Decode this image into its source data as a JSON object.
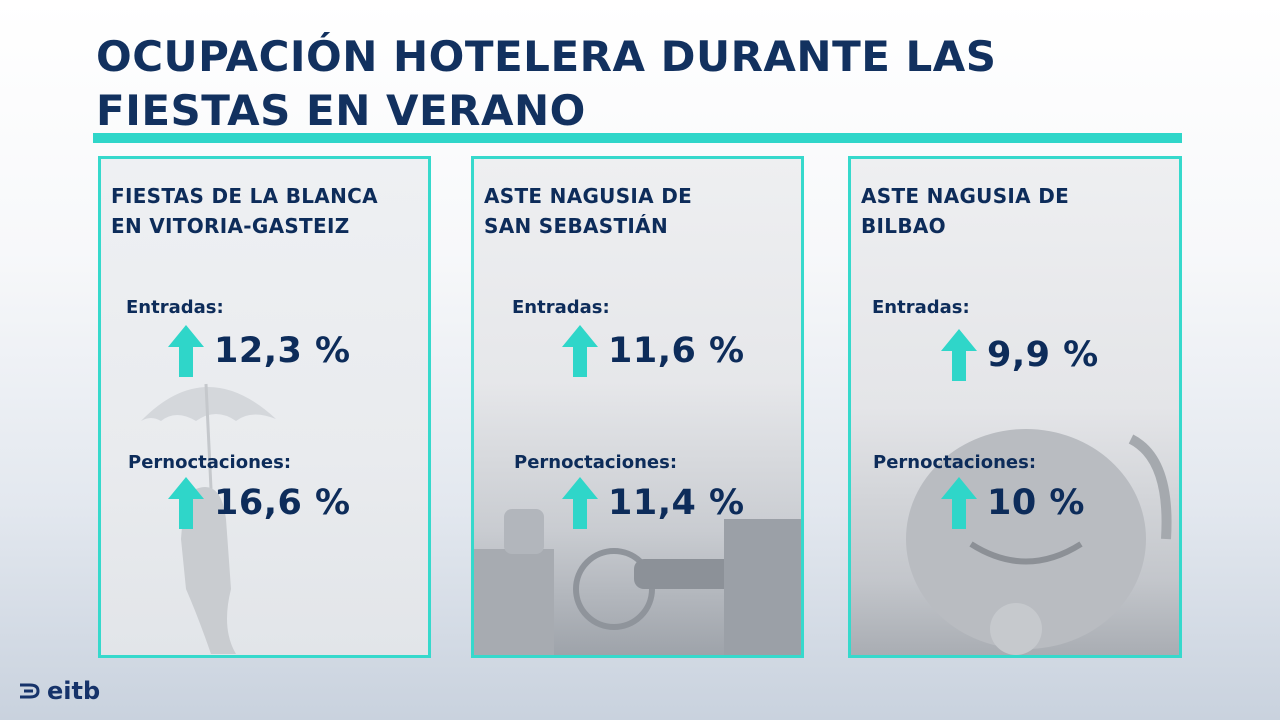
{
  "title": {
    "line1": "OCUPACIÓN HOTELERA DURANTE LAS",
    "line2": "FIESTAS EN VERANO"
  },
  "cards": [
    {
      "title_line1": "FIESTAS DE LA BLANCA",
      "title_line2": "EN VITORIA-GASTEIZ",
      "entradas_label": "Entradas:",
      "entradas_value": "12,3 %",
      "pernoctaciones_label": "Pernoctaciones:",
      "pernoctaciones_value": "16,6 %"
    },
    {
      "title_line1": "ASTE NAGUSIA DE",
      "title_line2": "SAN SEBASTIÁN",
      "entradas_label": "Entradas:",
      "entradas_value": "11,6 %",
      "pernoctaciones_label": "Pernoctaciones:",
      "pernoctaciones_value": "11,4 %"
    },
    {
      "title_line1": "ASTE NAGUSIA DE",
      "title_line2": "BILBAO",
      "entradas_label": "Entradas:",
      "entradas_value": "9,9 %",
      "pernoctaciones_label": "Pernoctaciones:",
      "pernoctaciones_value": "10 %"
    }
  ],
  "logo": {
    "text": "eitb"
  },
  "colors": {
    "title": "#12315f",
    "accent": "#2fd6c9",
    "arrow": "#2fd6c9",
    "text": "#0d2c5a"
  },
  "icons": {
    "trend": "arrow-up-icon",
    "brand": "eitb-logo-icon"
  }
}
